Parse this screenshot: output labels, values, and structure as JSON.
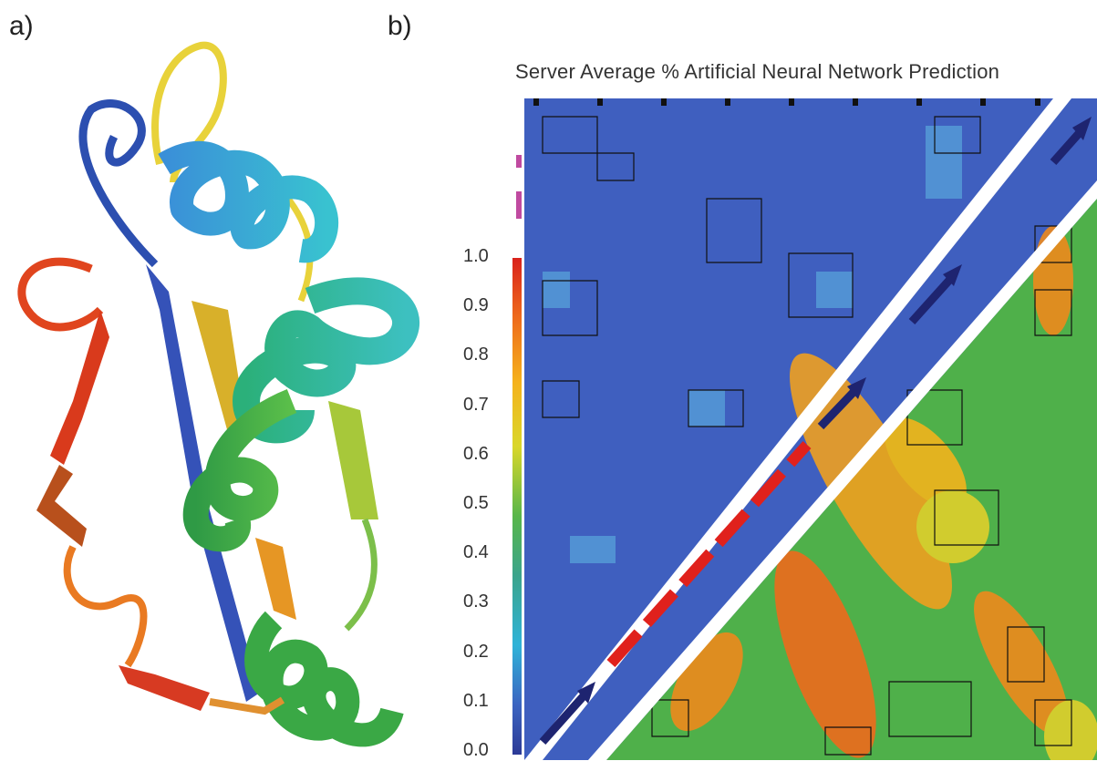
{
  "panels": {
    "a": "a)",
    "b": "b)"
  },
  "map": {
    "title": "Server Average % Artificial Neural Network Prediction",
    "upper_triangle": "Server Average %",
    "lower_triangle": "Artificial Neural Network Prediction"
  },
  "color_scale": {
    "ticks": [
      "1.0",
      "0.9",
      "0.8",
      "0.7",
      "0.6",
      "0.5",
      "0.4",
      "0.3",
      "0.2",
      "0.1",
      "0.0"
    ],
    "colors": [
      "#d9221c",
      "#ee6a1c",
      "#f5b21c",
      "#d9d72a",
      "#58b64a",
      "#3ba48c",
      "#2fb3d8",
      "#3b64c1",
      "#2c3a96"
    ]
  },
  "colors": {
    "map_background": "#3f5fbf",
    "arrow_dark": "#1e2470",
    "arrow_red": "#e0211c",
    "diagonal_band": "#ffffff"
  }
}
